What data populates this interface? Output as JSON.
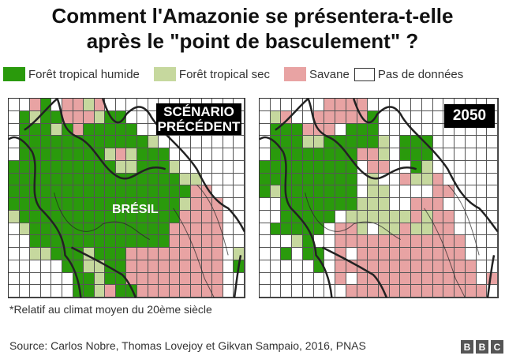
{
  "title": {
    "line1": "Comment l'Amazonie se présentera-t-elle",
    "line2": "après le \"point de basculement\" ?"
  },
  "legend": [
    {
      "key": "G",
      "label": "Forêt tropical humide",
      "color": "#2a9a0c"
    },
    {
      "key": "L",
      "label": "Forêt tropical sec",
      "color": "#c6d89e"
    },
    {
      "key": "P",
      "label": "Savane",
      "color": "#e8a3a3"
    },
    {
      "key": "W",
      "label": "Pas de données",
      "color": "#ffffff"
    }
  ],
  "maps": [
    {
      "id": "left",
      "label_line1": "SCÉNARIO",
      "label_line2": "PRÉCÉDENT",
      "country_label": "BRÉSIL",
      "grid": [
        "WWPGWPPLPWWWWWWWWWWWWW",
        "WGLGGPPPLGGWWWWWWWWWWW",
        "WGGGLGPGGGGGWWWWWWWWWW",
        "WGGGGGGGGGGGGLWWWWWWWW",
        "WGGGGGGGGLPLGGGWWWWWWW",
        "GGGGGGGGGGLLGGGLWWWWWW",
        "GGGGGGGGGGGGGGGGLLWWWW",
        "GGGGGGGGGGGGGGGGGPPWWW",
        "GGGGGGGGGGGGGGGGLPPPWW",
        "LGGGGGGGGGGGGGGGPPPPWW",
        "WLGGGGGGGGGGGGGPPPPPWW",
        "WWGGGGGGGGGGGGGPPPPPWW",
        "WWLLGGGLGGGPPPPPPPPPWL",
        "WWWWWGGLLGGPPPPPPPPPWG",
        "WWWWWWGGLGGPPPPPPPPPWW",
        "WWWWWWGGLPGGPPPPPPPPWW"
      ]
    },
    {
      "id": "right",
      "label_line1": "2050",
      "label_line2": "",
      "country_label": "",
      "grid": [
        "WWWWWWPPPPWWWWWWWWWWWW",
        "WLPWWPPPPPGWWWWWWWWWWW",
        "WGGGPPPWGGGWWWWWWWWWWW",
        "WGGGLLGGGGGLWGGGWWWWWW",
        "WGGGGGGGGPPLWGGGWWWWWW",
        "GGGGGGGGGWPPWWGLWWWWWW",
        "GGGGGGGGGWLWWPLLPWWWWW",
        "GLGGGGGGGWLLWWWWPPWWWW",
        "WWGGGGGGGLLLWWPPPWWWWW",
        "WWGGGGGWLLLLLLPLPPWWWW",
        "WGGGGGWPPLWLLPLLPPWWWW",
        "WWWLGWWPPPPPPPPPPPPWWW",
        "WWGWGGWPWPPPPPPPPPPWWW",
        "WWWWWGWPPPPPPPPPPPPPWW",
        "WWWWWWWPWPPPPPPPPPPPWP",
        "WWWWWWWWPPPPPPPPPPPPPW"
      ]
    }
  ],
  "footnote": "*Relatif au climat moyen du 20ème siècle",
  "source": "Source: Carlos Nobre, Thomas Lovejoy et Gikvan Sampaio, 2016, PNAS",
  "logo": [
    "B",
    "B",
    "C"
  ]
}
